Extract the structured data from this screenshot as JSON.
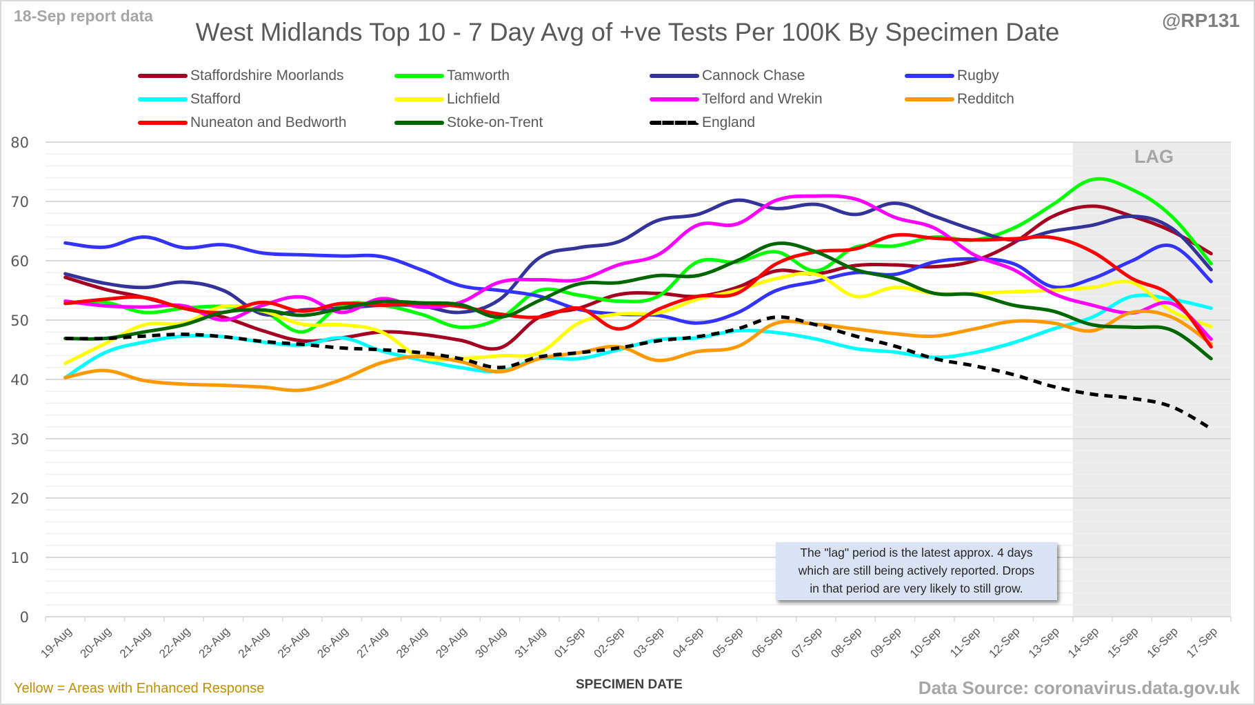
{
  "header": {
    "report_date": "18-Sep report data",
    "title": "West Midlands Top 10 - 7 Day Avg of +ve Tests Per 100K By Specimen Date",
    "handle": "@RP131"
  },
  "footer": {
    "footnote": "Yellow = Areas with Enhanced Response",
    "source": "Data Source: coronavirus.data.gov.uk"
  },
  "annotations": {
    "lag_label": "LAG",
    "lag_note": "The \"lag\" period is the latest approx. 4 days which are still being actively reported.  Drops in that period are very likely to still grow.",
    "lag_note_lines": [
      "The \"lag\" period is the latest approx. 4 days",
      "which are still being actively reported.  Drops",
      "in that period are very likely to still grow."
    ]
  },
  "chart_data": {
    "type": "line",
    "title": "West Midlands Top 10 - 7 Day Avg of +ve Tests Per 100K By Specimen Date",
    "xlabel": "SPECIMEN DATE",
    "ylabel": "",
    "ylim": [
      0,
      80
    ],
    "yticks": [
      0,
      10,
      20,
      30,
      40,
      50,
      60,
      70,
      80
    ],
    "grid": true,
    "legend_position": "top",
    "lag_period_start": "14-Sep",
    "categories": [
      "19-Aug",
      "20-Aug",
      "21-Aug",
      "22-Aug",
      "23-Aug",
      "24-Aug",
      "25-Aug",
      "26-Aug",
      "27-Aug",
      "28-Aug",
      "29-Aug",
      "30-Aug",
      "31-Aug",
      "01-Sep",
      "02-Sep",
      "03-Sep",
      "04-Sep",
      "05-Sep",
      "06-Sep",
      "07-Sep",
      "08-Sep",
      "09-Sep",
      "10-Sep",
      "11-Sep",
      "12-Sep",
      "13-Sep",
      "14-Sep",
      "15-Sep",
      "16-Sep",
      "17-Sep"
    ],
    "series": [
      {
        "name": "Staffordshire Moorlands",
        "color": "#a50021",
        "dashed": false,
        "values": [
          57.2,
          55.2,
          53.8,
          52.0,
          50.5,
          48.2,
          46.5,
          47.0,
          48.0,
          47.6,
          46.6,
          45.3,
          50.5,
          52.0,
          54.3,
          54.5,
          54.0,
          55.5,
          58.3,
          57.8,
          59.2,
          59.3,
          59.0,
          60.0,
          63.0,
          67.5,
          69.2,
          67.5,
          65.0,
          61.2
        ]
      },
      {
        "name": "Tamworth",
        "color": "#00ff00",
        "dashed": false,
        "values": [
          52.8,
          53.0,
          51.3,
          52.0,
          52.3,
          51.5,
          48.0,
          52.5,
          52.5,
          51.0,
          48.8,
          50.3,
          55.0,
          54.2,
          53.2,
          54.0,
          59.8,
          59.8,
          61.5,
          58.3,
          62.3,
          62.5,
          64.0,
          63.5,
          65.5,
          69.5,
          73.7,
          72.0,
          67.5,
          59.5
        ]
      },
      {
        "name": "Cannock Chase",
        "color": "#333399",
        "dashed": false,
        "values": [
          57.8,
          56.2,
          55.5,
          56.4,
          55.0,
          51.0,
          51.7,
          52.0,
          52.5,
          52.4,
          51.3,
          53.5,
          60.5,
          62.2,
          63.2,
          66.8,
          67.8,
          70.2,
          68.8,
          69.5,
          67.8,
          69.7,
          67.5,
          65.2,
          63.5,
          65.0,
          66.0,
          67.5,
          65.5,
          58.5
        ]
      },
      {
        "name": "Rugby",
        "color": "#3333ff",
        "dashed": false,
        "values": [
          63.0,
          62.3,
          64.0,
          62.2,
          62.7,
          61.3,
          61.0,
          60.8,
          60.7,
          58.5,
          55.8,
          55.0,
          54.0,
          51.8,
          51.0,
          50.8,
          49.5,
          51.2,
          55.0,
          56.5,
          58.0,
          57.7,
          59.8,
          60.3,
          59.5,
          55.6,
          57.0,
          60.0,
          62.5,
          56.5
        ]
      },
      {
        "name": "Stafford",
        "color": "#00ffff",
        "dashed": false,
        "values": [
          40.3,
          44.5,
          46.3,
          47.3,
          47.2,
          46.3,
          45.8,
          47.0,
          44.8,
          43.3,
          42.0,
          41.4,
          43.5,
          43.5,
          45.0,
          46.7,
          47.0,
          48.2,
          47.9,
          46.8,
          45.2,
          44.6,
          43.7,
          44.5,
          46.2,
          48.5,
          50.5,
          54.0,
          53.5,
          52.0
        ]
      },
      {
        "name": "Lichfield",
        "color": "#ffff00",
        "dashed": false,
        "values": [
          42.7,
          46.0,
          49.2,
          49.5,
          52.3,
          51.5,
          49.3,
          49.2,
          48.0,
          43.7,
          43.5,
          44.0,
          44.5,
          49.5,
          51.0,
          51.2,
          53.5,
          55.0,
          57.0,
          57.7,
          54.0,
          55.5,
          54.5,
          54.5,
          54.8,
          55.0,
          55.5,
          56.3,
          51.5,
          48.9
        ]
      },
      {
        "name": "Telford and Wrekin",
        "color": "#ff00ff",
        "dashed": false,
        "values": [
          53.2,
          52.4,
          52.2,
          52.4,
          50.0,
          52.5,
          53.9,
          51.3,
          53.6,
          52.2,
          53.0,
          56.4,
          56.8,
          56.8,
          59.3,
          61.0,
          66.0,
          66.2,
          70.2,
          70.9,
          70.4,
          67.3,
          65.5,
          61.0,
          58.5,
          54.5,
          52.5,
          51.2,
          52.8,
          46.8
        ]
      },
      {
        "name": "Redditch",
        "color": "#ff9900",
        "dashed": false,
        "values": [
          40.3,
          41.5,
          39.8,
          39.2,
          39.0,
          38.7,
          38.2,
          40.0,
          42.8,
          43.9,
          43.0,
          41.3,
          43.5,
          44.5,
          45.5,
          43.2,
          44.7,
          45.5,
          49.5,
          49.3,
          48.5,
          47.7,
          47.3,
          48.5,
          49.8,
          49.5,
          48.2,
          51.3,
          50.5,
          46.0
        ]
      },
      {
        "name": "Nuneaton and Bedworth",
        "color": "#ff0000",
        "dashed": false,
        "values": [
          52.8,
          53.5,
          53.8,
          52.0,
          51.3,
          53.0,
          51.5,
          52.8,
          52.5,
          52.8,
          52.3,
          51.0,
          50.5,
          52.0,
          48.5,
          51.8,
          54.0,
          54.5,
          59.5,
          61.5,
          62.0,
          64.3,
          63.8,
          63.5,
          63.7,
          63.9,
          61.5,
          57.0,
          54.0,
          45.5
        ]
      },
      {
        "name": "Stoke-on-Trent",
        "color": "#006600",
        "dashed": false,
        "values": [
          46.9,
          46.9,
          48.0,
          49.2,
          51.3,
          51.7,
          50.8,
          52.0,
          53.1,
          52.9,
          52.6,
          50.5,
          53.3,
          56.1,
          56.3,
          57.5,
          57.5,
          60.0,
          62.9,
          61.5,
          58.5,
          57.0,
          54.5,
          54.3,
          52.5,
          51.5,
          49.2,
          48.8,
          48.3,
          43.5
        ]
      },
      {
        "name": "England",
        "color": "#000000",
        "dashed": true,
        "values": [
          46.9,
          46.9,
          47.3,
          47.6,
          47.2,
          46.4,
          45.9,
          45.3,
          45.0,
          44.5,
          43.5,
          42.0,
          43.8,
          44.5,
          45.3,
          46.5,
          47.2,
          48.5,
          50.5,
          49.2,
          47.3,
          45.6,
          43.5,
          42.3,
          40.8,
          38.8,
          37.5,
          36.8,
          35.4,
          31.7
        ]
      }
    ]
  }
}
